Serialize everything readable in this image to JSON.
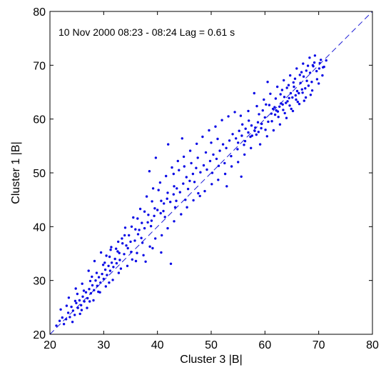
{
  "chart_data": {
    "type": "scatter",
    "title": "",
    "annotation": "10 Nov 2000  08:23 - 08:24 Lag = 0.61 s",
    "xlabel": "Cluster 3 |B|",
    "ylabel": "Cluster 1 |B|",
    "xlim": [
      20,
      80
    ],
    "ylim": [
      20,
      80
    ],
    "xticks": [
      20,
      30,
      40,
      50,
      60,
      70,
      80
    ],
    "yticks": [
      20,
      30,
      40,
      50,
      60,
      70,
      80
    ],
    "grid": false,
    "reference_line": {
      "type": "y=x",
      "style": "dashed",
      "color": "#1f1fd6"
    },
    "marker_color": "#0a0ae6",
    "series": [
      {
        "points": [
          [
            21.2,
            21.6
          ],
          [
            21.8,
            22.5
          ],
          [
            22.3,
            23.1
          ],
          [
            22.6,
            21.9
          ],
          [
            23.0,
            22.8
          ],
          [
            23.4,
            24.0
          ],
          [
            23.7,
            23.2
          ],
          [
            24.0,
            25.1
          ],
          [
            24.3,
            24.4
          ],
          [
            24.6,
            23.6
          ],
          [
            24.9,
            25.8
          ],
          [
            25.2,
            24.9
          ],
          [
            25.5,
            26.3
          ],
          [
            25.8,
            25.4
          ],
          [
            26.1,
            27.0
          ],
          [
            26.4,
            26.1
          ],
          [
            26.7,
            27.8
          ],
          [
            27.0,
            26.7
          ],
          [
            27.3,
            28.4
          ],
          [
            27.6,
            27.6
          ],
          [
            27.9,
            29.1
          ],
          [
            28.2,
            28.2
          ],
          [
            28.5,
            30.0
          ],
          [
            28.8,
            29.0
          ],
          [
            29.1,
            30.6
          ],
          [
            29.4,
            29.6
          ],
          [
            29.7,
            31.2
          ],
          [
            30.0,
            30.3
          ],
          [
            30.3,
            32.0
          ],
          [
            30.6,
            31.0
          ],
          [
            30.9,
            32.7
          ],
          [
            31.2,
            31.8
          ],
          [
            31.5,
            33.3
          ],
          [
            31.8,
            32.5
          ],
          [
            32.1,
            34.0
          ],
          [
            32.4,
            33.2
          ],
          [
            22.0,
            24.6
          ],
          [
            23.5,
            26.8
          ],
          [
            24.8,
            28.5
          ],
          [
            26.0,
            29.4
          ],
          [
            27.2,
            31.8
          ],
          [
            28.3,
            33.6
          ],
          [
            29.5,
            35.2
          ],
          [
            30.5,
            34.6
          ],
          [
            31.4,
            36.2
          ],
          [
            32.6,
            35.4
          ],
          [
            33.4,
            37.8
          ],
          [
            34.2,
            36.5
          ],
          [
            24.2,
            22.3
          ],
          [
            25.6,
            23.8
          ],
          [
            26.9,
            24.9
          ],
          [
            28.1,
            26.3
          ],
          [
            29.3,
            27.8
          ],
          [
            30.4,
            28.9
          ],
          [
            31.7,
            30.1
          ],
          [
            32.8,
            31.4
          ],
          [
            33.0,
            33.8
          ],
          [
            33.8,
            34.9
          ],
          [
            34.5,
            36.0
          ],
          [
            35.1,
            35.3
          ],
          [
            35.8,
            37.4
          ],
          [
            36.4,
            38.6
          ],
          [
            37.0,
            37.9
          ],
          [
            37.6,
            39.7
          ],
          [
            38.2,
            40.8
          ],
          [
            38.8,
            40.1
          ],
          [
            39.4,
            42.0
          ],
          [
            40.0,
            43.1
          ],
          [
            40.6,
            42.5
          ],
          [
            41.2,
            44.3
          ],
          [
            41.8,
            45.2
          ],
          [
            42.4,
            44.6
          ],
          [
            43.0,
            46.0
          ],
          [
            43.6,
            47.1
          ],
          [
            44.2,
            46.4
          ],
          [
            44.8,
            48.0
          ],
          [
            45.4,
            49.2
          ],
          [
            46.0,
            48.5
          ],
          [
            46.6,
            49.8
          ],
          [
            47.2,
            50.9
          ],
          [
            34.0,
            39.8
          ],
          [
            35.5,
            41.7
          ],
          [
            36.8,
            43.3
          ],
          [
            38.0,
            45.6
          ],
          [
            39.2,
            47.1
          ],
          [
            40.5,
            48.2
          ],
          [
            41.6,
            49.4
          ],
          [
            42.7,
            51.0
          ],
          [
            43.8,
            52.2
          ],
          [
            44.9,
            53.0
          ],
          [
            46.1,
            54.1
          ],
          [
            47.3,
            55.4
          ],
          [
            38.5,
            50.3
          ],
          [
            42.0,
            55.3
          ],
          [
            44.6,
            56.4
          ],
          [
            39.7,
            52.8
          ],
          [
            35.3,
            33.9
          ],
          [
            36.2,
            35.1
          ],
          [
            37.4,
            34.7
          ],
          [
            38.6,
            36.3
          ],
          [
            39.6,
            37.8
          ],
          [
            40.8,
            38.4
          ],
          [
            41.9,
            39.7
          ],
          [
            43.1,
            41.0
          ],
          [
            44.4,
            42.3
          ],
          [
            45.5,
            43.6
          ],
          [
            46.7,
            44.9
          ],
          [
            47.9,
            45.7
          ],
          [
            42.5,
            33.1
          ],
          [
            40.7,
            35.2
          ],
          [
            39.1,
            36.0
          ],
          [
            37.8,
            33.5
          ],
          [
            48.0,
            50.1
          ],
          [
            48.6,
            51.4
          ],
          [
            49.2,
            50.6
          ],
          [
            49.8,
            52.2
          ],
          [
            50.4,
            53.4
          ],
          [
            51.0,
            52.6
          ],
          [
            51.6,
            54.1
          ],
          [
            52.2,
            55.3
          ],
          [
            52.8,
            54.6
          ],
          [
            53.4,
            56.0
          ],
          [
            54.0,
            57.2
          ],
          [
            54.6,
            56.4
          ],
          [
            55.2,
            57.8
          ],
          [
            55.8,
            59.0
          ],
          [
            56.4,
            58.2
          ],
          [
            57.0,
            59.7
          ],
          [
            48.4,
            56.7
          ],
          [
            49.6,
            57.9
          ],
          [
            50.8,
            58.6
          ],
          [
            52.0,
            59.8
          ],
          [
            53.2,
            60.5
          ],
          [
            54.4,
            61.3
          ],
          [
            48.8,
            46.6
          ],
          [
            50.1,
            47.9
          ],
          [
            51.3,
            48.7
          ],
          [
            52.6,
            49.8
          ],
          [
            53.8,
            51.2
          ],
          [
            55.0,
            52.0
          ],
          [
            56.2,
            53.4
          ],
          [
            57.4,
            54.6
          ],
          [
            52.9,
            47.5
          ],
          [
            55.6,
            49.3
          ],
          [
            57.6,
            56.9
          ],
          [
            58.2,
            58.4
          ],
          [
            58.8,
            57.6
          ],
          [
            59.4,
            59.1
          ],
          [
            60.0,
            60.3
          ],
          [
            60.6,
            59.5
          ],
          [
            61.2,
            61.0
          ],
          [
            61.8,
            62.2
          ],
          [
            62.4,
            61.4
          ],
          [
            63.0,
            62.9
          ],
          [
            63.6,
            64.1
          ],
          [
            64.2,
            63.3
          ],
          [
            64.8,
            64.8
          ],
          [
            65.4,
            66.0
          ],
          [
            66.0,
            65.2
          ],
          [
            66.6,
            66.7
          ],
          [
            67.2,
            67.9
          ],
          [
            67.8,
            67.1
          ],
          [
            68.4,
            68.6
          ],
          [
            69.0,
            69.8
          ],
          [
            69.6,
            68.9
          ],
          [
            70.2,
            70.4
          ],
          [
            70.8,
            69.6
          ],
          [
            71.4,
            70.9
          ],
          [
            58.5,
            62.4
          ],
          [
            59.8,
            63.6
          ],
          [
            61.0,
            64.7
          ],
          [
            62.3,
            66.0
          ],
          [
            63.5,
            67.2
          ],
          [
            64.7,
            68.1
          ],
          [
            65.9,
            69.4
          ],
          [
            67.1,
            70.3
          ],
          [
            68.3,
            71.4
          ],
          [
            69.3,
            71.8
          ],
          [
            59.1,
            55.3
          ],
          [
            60.4,
            56.8
          ],
          [
            61.6,
            57.9
          ],
          [
            62.8,
            59.0
          ],
          [
            64.0,
            60.2
          ],
          [
            65.2,
            61.5
          ],
          [
            66.4,
            62.8
          ],
          [
            67.6,
            64.0
          ],
          [
            68.8,
            65.3
          ],
          [
            70.0,
            66.6
          ],
          [
            56.9,
            61.5
          ],
          [
            58.0,
            64.8
          ],
          [
            60.5,
            66.9
          ],
          [
            55.5,
            60.6
          ],
          [
            62.0,
            63.8
          ],
          [
            63.2,
            65.4
          ],
          [
            64.4,
            66.3
          ],
          [
            65.6,
            67.5
          ],
          [
            66.8,
            68.7
          ],
          [
            68.0,
            69.9
          ],
          [
            69.2,
            70.5
          ],
          [
            70.4,
            71.0
          ],
          [
            60.8,
            62.6
          ],
          [
            61.5,
            61.9
          ],
          [
            62.7,
            62.3
          ],
          [
            63.9,
            63.0
          ],
          [
            65.1,
            64.0
          ],
          [
            66.3,
            64.8
          ],
          [
            67.5,
            65.7
          ],
          [
            68.7,
            66.9
          ],
          [
            58.9,
            60.9
          ],
          [
            59.6,
            61.6
          ],
          [
            60.2,
            62.7
          ],
          [
            61.9,
            60.8
          ],
          [
            63.4,
            61.7
          ],
          [
            64.6,
            62.5
          ],
          [
            65.8,
            63.6
          ],
          [
            67.0,
            64.9
          ],
          [
            55.0,
            55.6
          ],
          [
            55.7,
            56.9
          ],
          [
            56.3,
            55.9
          ],
          [
            56.9,
            57.5
          ],
          [
            57.5,
            58.8
          ],
          [
            58.1,
            57.8
          ],
          [
            58.7,
            59.4
          ],
          [
            59.3,
            58.3
          ],
          [
            24.7,
            26.2
          ],
          [
            26.3,
            28.1
          ],
          [
            27.5,
            29.9
          ],
          [
            28.7,
            31.4
          ],
          [
            29.9,
            32.9
          ],
          [
            31.1,
            34.4
          ],
          [
            32.3,
            35.9
          ],
          [
            33.5,
            36.9
          ],
          [
            34.7,
            38.4
          ],
          [
            35.9,
            39.5
          ],
          [
            37.1,
            40.7
          ],
          [
            38.3,
            42.2
          ],
          [
            39.5,
            43.4
          ],
          [
            40.7,
            44.8
          ],
          [
            41.9,
            46.3
          ],
          [
            43.1,
            47.5
          ],
          [
            23.1,
            25.3
          ],
          [
            25.1,
            27.5
          ],
          [
            27.8,
            30.7
          ],
          [
            30.2,
            33.3
          ],
          [
            32.9,
            35.1
          ],
          [
            35.0,
            37.2
          ],
          [
            36.6,
            39.4
          ],
          [
            38.9,
            41.1
          ],
          [
            41.1,
            42.9
          ],
          [
            43.5,
            44.8
          ],
          [
            45.7,
            47.0
          ],
          [
            46.9,
            48.3
          ],
          [
            47.6,
            46.2
          ],
          [
            45.2,
            45.0
          ],
          [
            43.3,
            43.6
          ],
          [
            41.4,
            41.8
          ],
          [
            34.4,
            32.7
          ],
          [
            36.0,
            33.6
          ],
          [
            37.2,
            37.0
          ],
          [
            33.2,
            32.2
          ],
          [
            31.0,
            29.6
          ],
          [
            29.0,
            27.9
          ],
          [
            27.4,
            26.1
          ],
          [
            25.9,
            24.5
          ],
          [
            50.2,
            50.0
          ],
          [
            51.4,
            51.3
          ],
          [
            52.5,
            51.8
          ],
          [
            53.7,
            53.1
          ],
          [
            54.9,
            54.4
          ],
          [
            56.1,
            55.2
          ],
          [
            57.3,
            56.7
          ],
          [
            58.4,
            57.1
          ],
          [
            46.3,
            51.8
          ],
          [
            45.0,
            51.2
          ],
          [
            44.0,
            50.5
          ],
          [
            43.0,
            49.8
          ],
          [
            49.0,
            53.8
          ],
          [
            50.0,
            55.6
          ],
          [
            51.2,
            56.3
          ],
          [
            47.5,
            52.8
          ],
          [
            40.2,
            46.8
          ],
          [
            39.0,
            44.7
          ],
          [
            37.6,
            42.8
          ],
          [
            36.3,
            41.5
          ],
          [
            35.2,
            40.0
          ],
          [
            33.9,
            38.4
          ],
          [
            32.7,
            37.2
          ],
          [
            31.3,
            35.7
          ],
          [
            60.1,
            58.0
          ],
          [
            61.3,
            59.6
          ],
          [
            62.5,
            60.4
          ],
          [
            63.7,
            61.1
          ],
          [
            64.9,
            61.9
          ],
          [
            66.1,
            63.2
          ],
          [
            67.3,
            63.4
          ],
          [
            68.5,
            64.5
          ],
          [
            62.9,
            64.6
          ],
          [
            64.1,
            65.8
          ],
          [
            65.3,
            66.8
          ],
          [
            66.5,
            68.2
          ],
          [
            67.7,
            69.0
          ],
          [
            68.9,
            70.0
          ],
          [
            70.1,
            69.4
          ],
          [
            71.0,
            69.7
          ],
          [
            70.7,
            68.1
          ],
          [
            69.7,
            67.4
          ],
          [
            68.1,
            66.2
          ],
          [
            66.9,
            65.5
          ],
          [
            65.7,
            64.4
          ],
          [
            64.5,
            63.9
          ],
          [
            63.3,
            62.7
          ],
          [
            62.1,
            61.6
          ]
        ]
      }
    ]
  }
}
